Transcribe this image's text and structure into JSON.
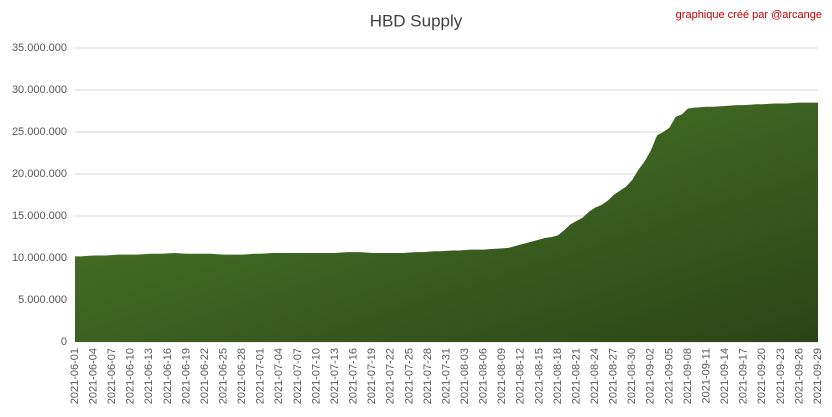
{
  "chart_data": {
    "type": "area",
    "title": "HBD Supply",
    "annotation": "graphique créé par @arcange",
    "color": "#4e7d2b",
    "grid": true,
    "categories": [
      "2021-06-01",
      null,
      null,
      "2021-06-04",
      null,
      null,
      "2021-06-07",
      null,
      null,
      "2021-06-10",
      null,
      null,
      "2021-06-13",
      null,
      null,
      "2021-06-16",
      null,
      null,
      "2021-06-19",
      null,
      null,
      "2021-06-22",
      null,
      null,
      "2021-06-25",
      null,
      null,
      "2021-06-28",
      null,
      null,
      "2021-07-01",
      null,
      null,
      "2021-07-04",
      null,
      null,
      "2021-07-07",
      null,
      null,
      "2021-07-10",
      null,
      null,
      "2021-07-13",
      null,
      null,
      "2021-07-16",
      null,
      null,
      "2021-07-19",
      null,
      null,
      "2021-07-22",
      null,
      null,
      "2021-07-25",
      null,
      null,
      "2021-07-28",
      null,
      null,
      "2021-07-31",
      null,
      null,
      "2021-08-03",
      null,
      null,
      "2021-08-06",
      null,
      null,
      "2021-08-09",
      null,
      null,
      "2021-08-12",
      null,
      null,
      "2021-08-15",
      null,
      null,
      "2021-08-18",
      null,
      null,
      "2021-08-21",
      null,
      null,
      "2021-08-24",
      null,
      null,
      "2021-08-27",
      null,
      null,
      "2021-08-30",
      null,
      null,
      "2021-09-02",
      null,
      null,
      "2021-09-05",
      null,
      null,
      "2021-09-08",
      null,
      null,
      "2021-09-11",
      null,
      null,
      "2021-09-14",
      null,
      null,
      "2021-09-17",
      null,
      null,
      "2021-09-20",
      null,
      null,
      "2021-09-23",
      null,
      null,
      "2021-09-26",
      null,
      null,
      "2021-09-29"
    ],
    "values": [
      10200000,
      10200000,
      10250000,
      10300000,
      10300000,
      10300000,
      10350000,
      10400000,
      10400000,
      10400000,
      10400000,
      10450000,
      10500000,
      10500000,
      10500000,
      10550000,
      10600000,
      10550000,
      10500000,
      10500000,
      10500000,
      10500000,
      10500000,
      10450000,
      10400000,
      10400000,
      10400000,
      10400000,
      10450000,
      10500000,
      10500000,
      10550000,
      10600000,
      10600000,
      10600000,
      10600000,
      10600000,
      10600000,
      10600000,
      10600000,
      10600000,
      10600000,
      10600000,
      10650000,
      10700000,
      10700000,
      10700000,
      10650000,
      10600000,
      10600000,
      10600000,
      10600000,
      10600000,
      10600000,
      10650000,
      10700000,
      10700000,
      10750000,
      10800000,
      10800000,
      10850000,
      10900000,
      10900000,
      10950000,
      11000000,
      11000000,
      11000000,
      11050000,
      11100000,
      11150000,
      11200000,
      11400000,
      11600000,
      11800000,
      12000000,
      12200000,
      12400000,
      12500000,
      12700000,
      13300000,
      14000000,
      14400000,
      14800000,
      15500000,
      16000000,
      16300000,
      16800000,
      17500000,
      18000000,
      18500000,
      19300000,
      20500000,
      21500000,
      22800000,
      24600000,
      25000000,
      25500000,
      26800000,
      27100000,
      27800000,
      27900000,
      27950000,
      28000000,
      28000000,
      28050000,
      28100000,
      28150000,
      28200000,
      28200000,
      28250000,
      28300000,
      28300000,
      28350000,
      28400000,
      28400000,
      28400000,
      28450000,
      28500000,
      28500000,
      28500000,
      28500000
    ],
    "ylim": [
      0,
      35000000
    ],
    "yticks": [
      0,
      {
        "value": 5000000,
        "label": "5.000.000"
      },
      {
        "value": 10000000,
        "label": "10.000.000"
      },
      {
        "value": 15000000,
        "label": "15.000.000"
      },
      {
        "value": 20000000,
        "label": "20.000.000"
      },
      {
        "value": 25000000,
        "label": "25.000.000"
      },
      {
        "value": 30000000,
        "label": "30.000.000"
      },
      {
        "value": 35000000,
        "label": "35.000.000"
      }
    ]
  }
}
